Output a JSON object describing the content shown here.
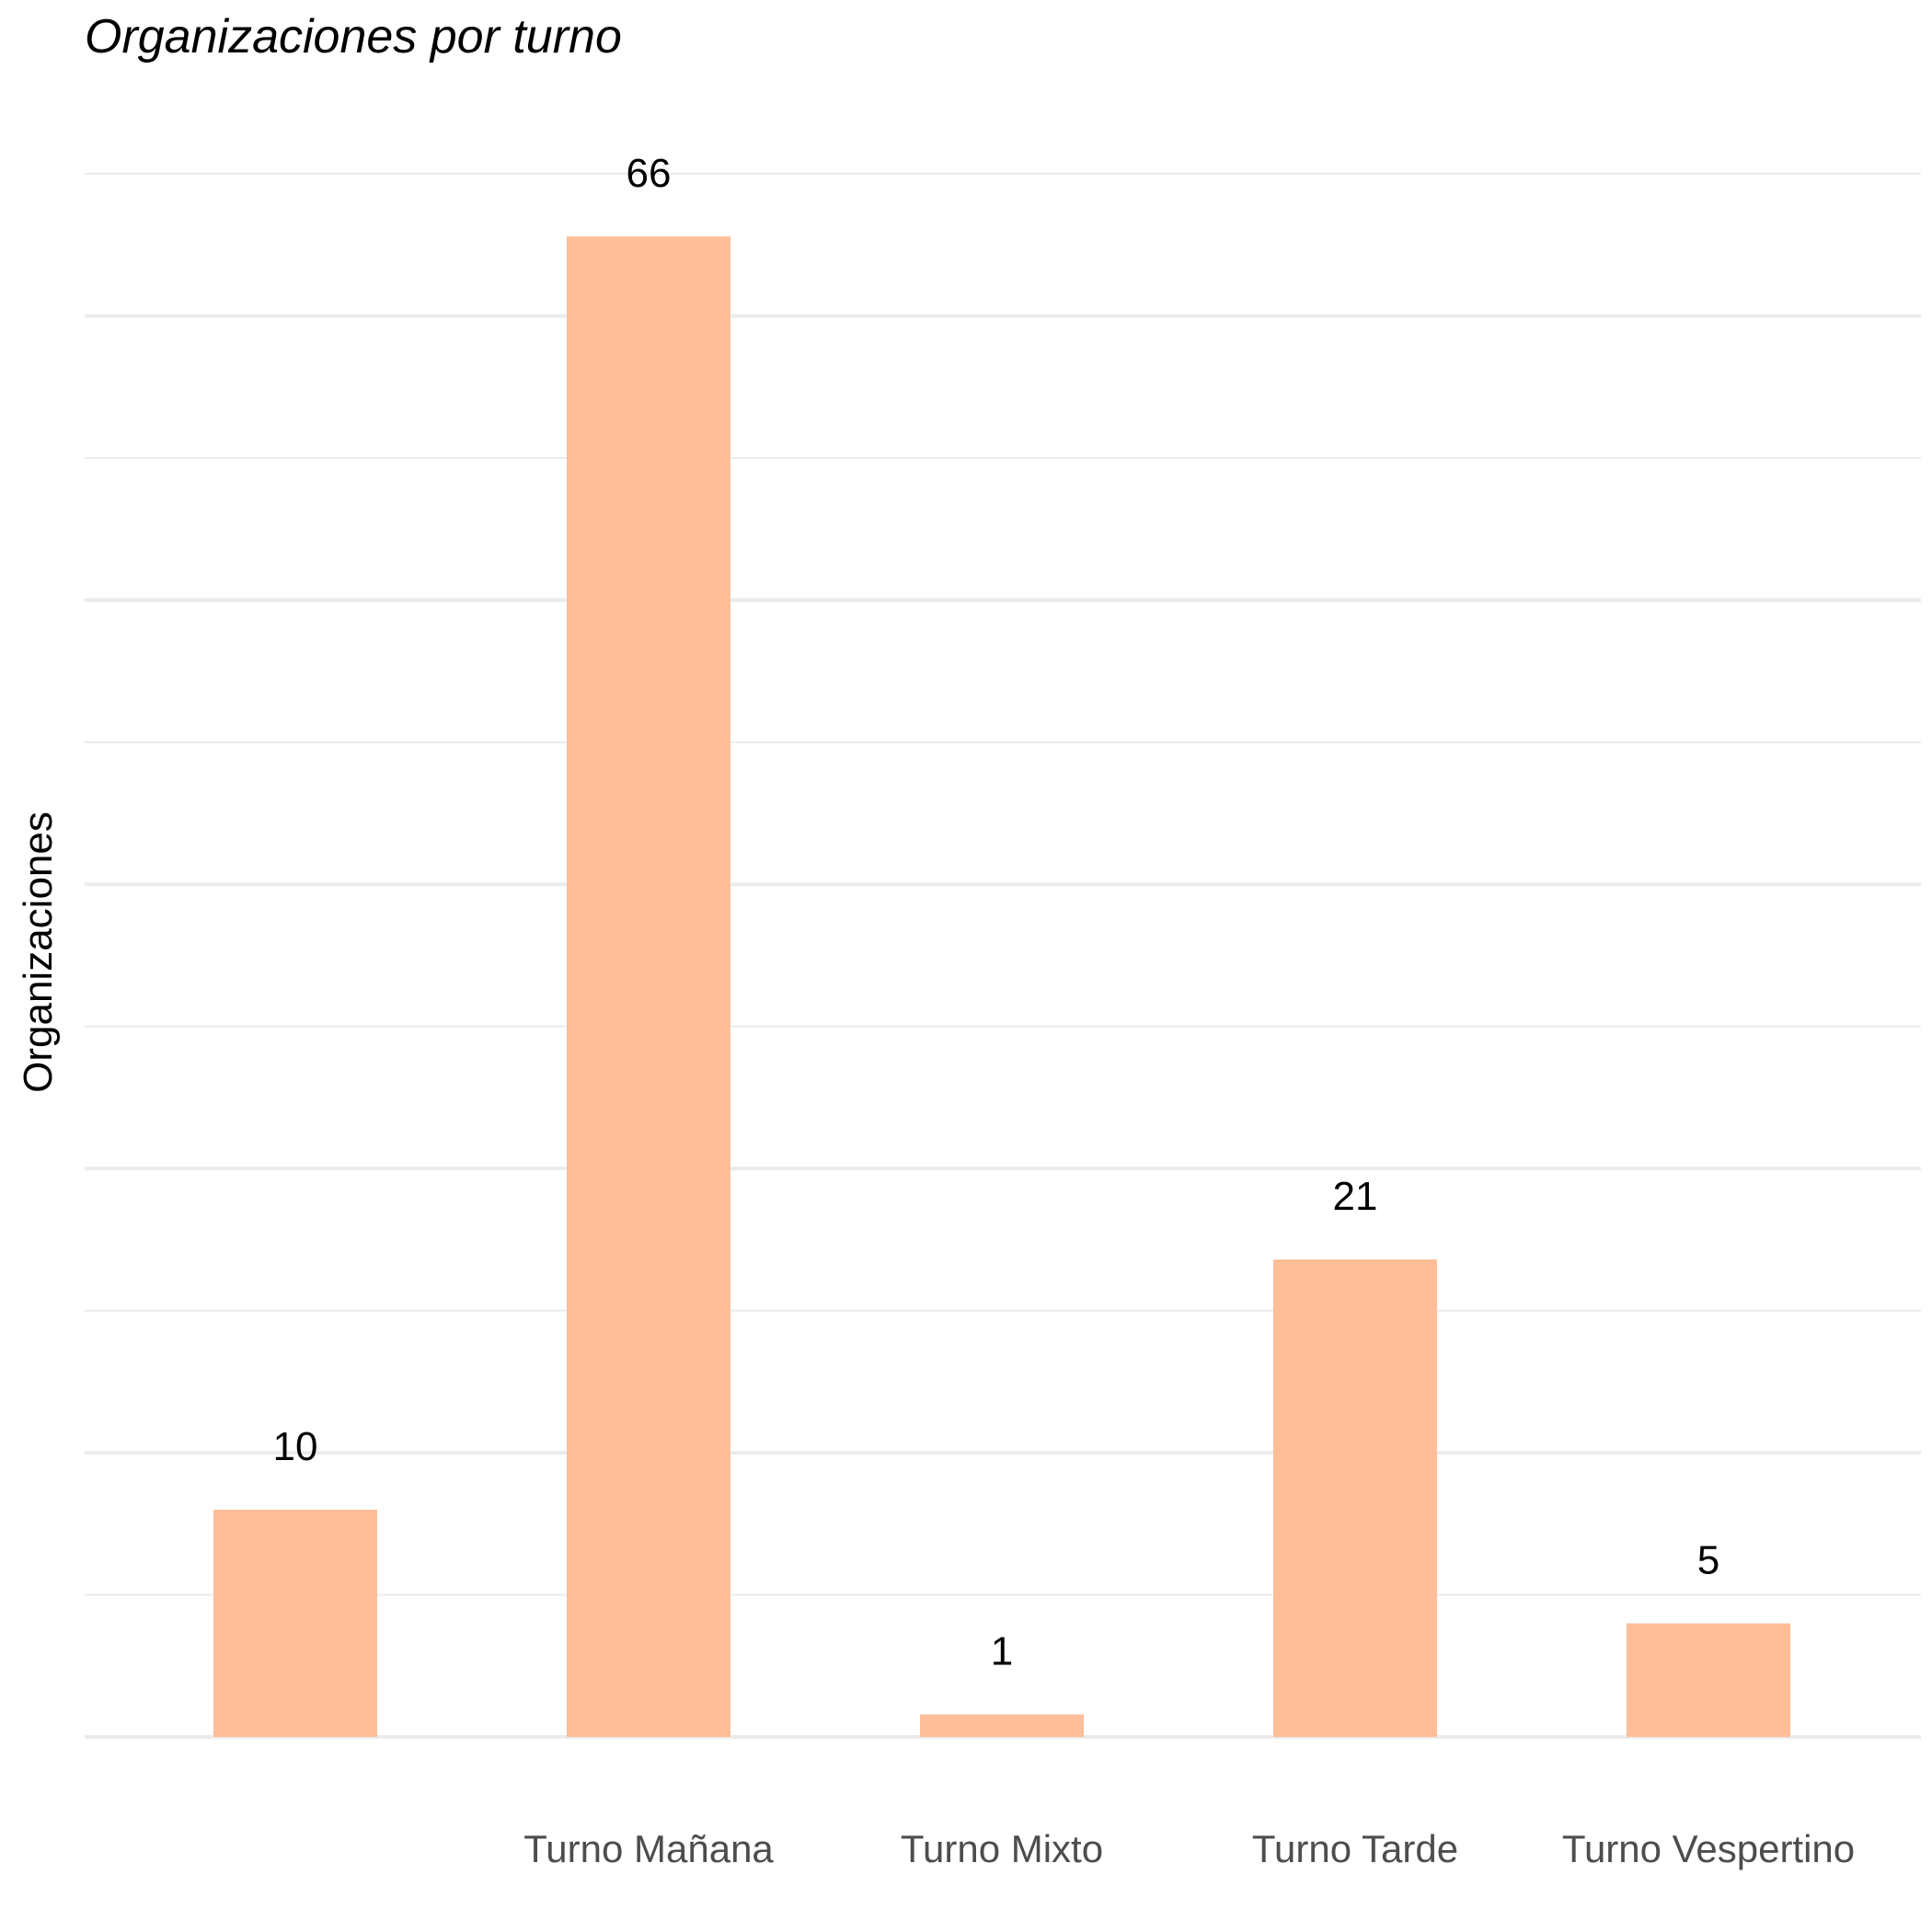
{
  "chart_data": {
    "type": "bar",
    "title": "Organizaciones por turno",
    "xlabel": "",
    "ylabel": "Organizaciones",
    "categories": [
      "",
      "Turno Mañana",
      "Turno Mixto",
      "Turno Tarde",
      "Turno Vespertino"
    ],
    "values": [
      10,
      66,
      1,
      21,
      5
    ],
    "data_labels": [
      "10",
      "66",
      "1",
      "21",
      "5"
    ],
    "ylim": [
      0,
      70
    ],
    "y_ticks_shown": false,
    "grid": true,
    "legend": "none",
    "bar_color": "#FDBE98"
  }
}
